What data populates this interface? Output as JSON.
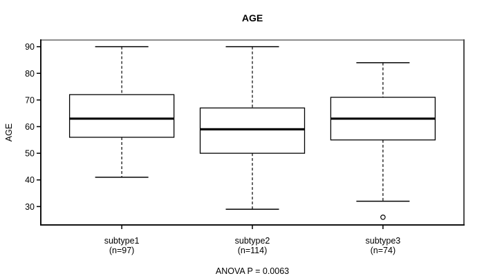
{
  "chart_data": {
    "type": "boxplot",
    "title": "AGE",
    "ylabel": "AGE",
    "xlabel": "",
    "annotation": "ANOVA P = 0.0063",
    "grid": false,
    "legend": false,
    "ylim": [
      23.1,
      92.5
    ],
    "yticks": [
      30,
      40,
      50,
      60,
      70,
      80,
      90
    ],
    "categories": [
      "subtype1",
      "subtype2",
      "subtype3"
    ],
    "category_sublabels": [
      "(n=97)",
      "(n=114)",
      "(n=74)"
    ],
    "series": [
      {
        "name": "subtype1",
        "n": 97,
        "whisker_low": 41,
        "q1": 56,
        "median": 63,
        "q3": 72,
        "whisker_high": 90,
        "outliers": []
      },
      {
        "name": "subtype2",
        "n": 114,
        "whisker_low": 29,
        "q1": 50,
        "median": 59,
        "q3": 67,
        "whisker_high": 90,
        "outliers": []
      },
      {
        "name": "subtype3",
        "n": 74,
        "whisker_low": 32,
        "q1": 55,
        "median": 63,
        "q3": 71,
        "whisker_high": 84,
        "outliers": [
          26
        ]
      }
    ],
    "colors": {
      "line": "#000000",
      "box_fill": "#ffffff",
      "background": "#ffffff",
      "frame_top": "#8c8c8c",
      "frame_right": "#4d4d4d",
      "frame_bottom": "#111111",
      "frame_left": "#111111"
    }
  }
}
